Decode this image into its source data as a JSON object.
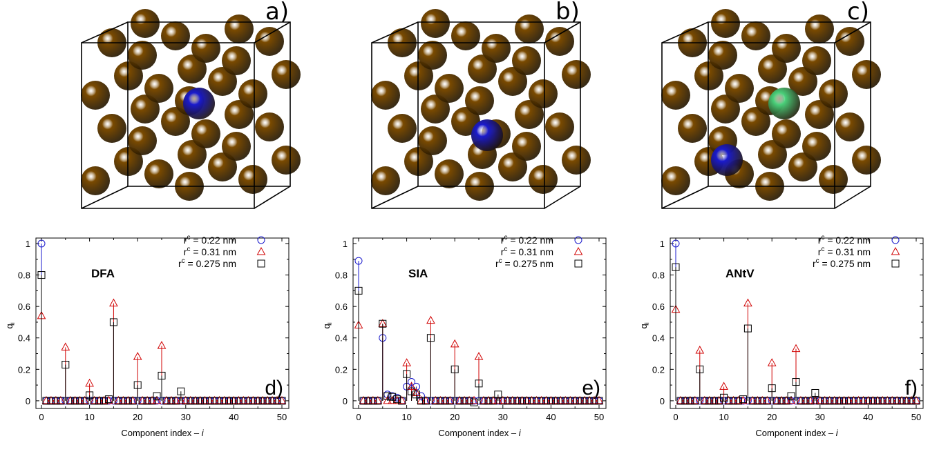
{
  "figure": {
    "panels": [
      {
        "letter": "a)",
        "structure": "DFA"
      },
      {
        "letter": "b)",
        "structure": "SIA"
      },
      {
        "letter": "c)",
        "structure": "ANtV"
      }
    ],
    "colors": {
      "atom": "#7a4a00",
      "defect_blue": "#1a1acc",
      "defect_green": "#4ad07a",
      "box": "#000000",
      "series_022": "#1a1acc",
      "series_031": "#d00000",
      "series_0275": "#000000"
    }
  },
  "chart_data": [
    {
      "type": "scatter",
      "panel_letter": "d)",
      "inset_label": "DFA",
      "xlabel": "Component index – i",
      "ylabel": "q",
      "ylabel_sub": "i",
      "xlim": [
        0,
        50
      ],
      "ylim": [
        0,
        1
      ],
      "xticks": [
        "0",
        "10",
        "20",
        "30",
        "40",
        "50"
      ],
      "yticks": [
        "0",
        "0.2",
        "0.4",
        "0.6",
        "0.8",
        "1"
      ],
      "legend_position": "top-right",
      "series": [
        {
          "name": "r",
          "name_sup": "c",
          "name_rest": " = 0.22 nm",
          "marker": "circle",
          "color": "#1a1acc",
          "points": [
            [
              0,
              1.0
            ]
          ]
        },
        {
          "name": "r",
          "name_sup": "c",
          "name_rest": " = 0.31 nm",
          "marker": "triangle",
          "color": "#d00000",
          "points": [
            [
              0,
              0.54
            ],
            [
              5,
              0.34
            ],
            [
              10,
              0.11
            ],
            [
              15,
              0.62
            ],
            [
              20,
              0.28
            ],
            [
              25,
              0.35
            ]
          ]
        },
        {
          "name": "r",
          "name_sup": "c",
          "name_rest": " = 0.275 nm",
          "marker": "square",
          "color": "#000000",
          "points": [
            [
              0,
              0.8
            ],
            [
              5,
              0.23
            ],
            [
              10,
              0.035
            ],
            [
              14,
              0.01
            ],
            [
              15,
              0.5
            ],
            [
              20,
              0.1
            ],
            [
              24,
              0.03
            ],
            [
              25,
              0.16
            ],
            [
              29,
              0.06
            ]
          ]
        }
      ]
    },
    {
      "type": "scatter",
      "panel_letter": "e)",
      "inset_label": "SIA",
      "xlabel": "Component index – i",
      "ylabel": "q",
      "ylabel_sub": "i",
      "xlim": [
        0,
        50
      ],
      "ylim": [
        0,
        1
      ],
      "xticks": [
        "0",
        "10",
        "20",
        "30",
        "40",
        "50"
      ],
      "yticks": [
        "0",
        "0.2",
        "0.4",
        "0.6",
        "0.8",
        "1"
      ],
      "legend_position": "top-right",
      "series": [
        {
          "name": "r",
          "name_sup": "c",
          "name_rest": " = 0.22 nm",
          "marker": "circle",
          "color": "#1a1acc",
          "points": [
            [
              0,
              0.89
            ],
            [
              5,
              0.4
            ],
            [
              6,
              0.04
            ],
            [
              7,
              0.03
            ],
            [
              8,
              0.02
            ],
            [
              10,
              0.09
            ],
            [
              11,
              0.12
            ],
            [
              12,
              0.09
            ],
            [
              13,
              0.03
            ]
          ]
        },
        {
          "name": "r",
          "name_sup": "c",
          "name_rest": " = 0.31 nm",
          "marker": "triangle",
          "color": "#d00000",
          "points": [
            [
              0,
              0.48
            ],
            [
              5,
              0.49
            ],
            [
              10,
              0.24
            ],
            [
              11,
              0.09
            ],
            [
              12,
              0.05
            ],
            [
              15,
              0.51
            ],
            [
              20,
              0.36
            ],
            [
              25,
              0.28
            ]
          ]
        },
        {
          "name": "r",
          "name_sup": "c",
          "name_rest": " = 0.275 nm",
          "marker": "square",
          "color": "#000000",
          "points": [
            [
              0,
              0.7
            ],
            [
              5,
              0.49
            ],
            [
              6,
              0.03
            ],
            [
              7,
              0.025
            ],
            [
              8,
              0.01
            ],
            [
              10,
              0.17
            ],
            [
              11,
              0.06
            ],
            [
              12,
              0.04
            ],
            [
              15,
              0.4
            ],
            [
              20,
              0.2
            ],
            [
              24,
              -0.01
            ],
            [
              25,
              0.11
            ],
            [
              29,
              0.04
            ]
          ]
        }
      ]
    },
    {
      "type": "scatter",
      "panel_letter": "f)",
      "inset_label": "ANtV",
      "xlabel": "Component index – i",
      "ylabel": "q",
      "ylabel_sub": "i",
      "xlim": [
        0,
        50
      ],
      "ylim": [
        0,
        1
      ],
      "xticks": [
        "0",
        "10",
        "20",
        "30",
        "40",
        "50"
      ],
      "yticks": [
        "0",
        "0.2",
        "0.4",
        "0.6",
        "0.8",
        "1"
      ],
      "legend_position": "top-right",
      "series": [
        {
          "name": "r",
          "name_sup": "c",
          "name_rest": " = 0.22 nm",
          "marker": "circle",
          "color": "#1a1acc",
          "points": [
            [
              0,
              1.0
            ]
          ]
        },
        {
          "name": "r",
          "name_sup": "c",
          "name_rest": " = 0.31 nm",
          "marker": "triangle",
          "color": "#d00000",
          "points": [
            [
              0,
              0.58
            ],
            [
              5,
              0.32
            ],
            [
              10,
              0.09
            ],
            [
              15,
              0.62
            ],
            [
              20,
              0.24
            ],
            [
              25,
              0.33
            ]
          ]
        },
        {
          "name": "r",
          "name_sup": "c",
          "name_rest": " = 0.275 nm",
          "marker": "square",
          "color": "#000000",
          "points": [
            [
              0,
              0.85
            ],
            [
              5,
              0.2
            ],
            [
              10,
              0.02
            ],
            [
              14,
              0.01
            ],
            [
              15,
              0.46
            ],
            [
              20,
              0.08
            ],
            [
              24,
              0.03
            ],
            [
              25,
              0.12
            ],
            [
              29,
              0.05
            ]
          ]
        }
      ]
    }
  ]
}
